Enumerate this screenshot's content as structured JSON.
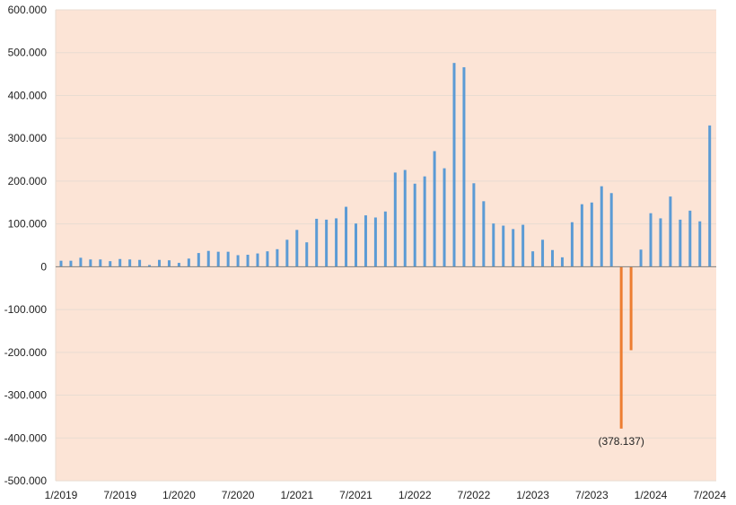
{
  "chart_data": {
    "type": "bar",
    "title": "",
    "xlabel": "",
    "ylabel": "",
    "ylim": [
      -500000,
      600000
    ],
    "y_ticks": [
      {
        "value": 600000,
        "label": "600.000"
      },
      {
        "value": 500000,
        "label": "500.000"
      },
      {
        "value": 400000,
        "label": "400.000"
      },
      {
        "value": 300000,
        "label": "300.000"
      },
      {
        "value": 200000,
        "label": "200.000"
      },
      {
        "value": 100000,
        "label": "100.000"
      },
      {
        "value": 0,
        "label": "0"
      },
      {
        "value": -100000,
        "label": "-100.000"
      },
      {
        "value": -200000,
        "label": "-200.000"
      },
      {
        "value": -300000,
        "label": "-300.000"
      },
      {
        "value": -400000,
        "label": "-400.000"
      },
      {
        "value": -500000,
        "label": "-500.000"
      }
    ],
    "x_ticks": [
      {
        "index": 0,
        "label": "1/2019"
      },
      {
        "index": 6,
        "label": "7/2019"
      },
      {
        "index": 12,
        "label": "1/2020"
      },
      {
        "index": 18,
        "label": "7/2020"
      },
      {
        "index": 24,
        "label": "1/2021"
      },
      {
        "index": 30,
        "label": "7/2021"
      },
      {
        "index": 36,
        "label": "1/2022"
      },
      {
        "index": 42,
        "label": "7/2022"
      },
      {
        "index": 48,
        "label": "1/2023"
      },
      {
        "index": 54,
        "label": "7/2023"
      },
      {
        "index": 60,
        "label": "1/2024"
      },
      {
        "index": 66,
        "label": "7/2024"
      }
    ],
    "grid": true,
    "legend": "none",
    "colors": {
      "plot_background": "#fce4d6",
      "gridline": "#e8dcd2",
      "positive": "#5b9bd5",
      "negative": "#ed7d31",
      "axis": "#7f7f7f"
    },
    "series": [
      {
        "values": [
          14000,
          14000,
          21000,
          17000,
          17000,
          13000,
          18000,
          17000,
          16000,
          4000,
          16000,
          15000,
          9000,
          19000,
          32000,
          37000,
          35000,
          35000,
          27000,
          28000,
          31000,
          36000,
          41000,
          63000,
          86000,
          57000,
          112000,
          110000,
          113000,
          140000,
          101000,
          120000,
          115000,
          129000,
          220000,
          226000,
          194000,
          211000,
          270000,
          230000,
          476000,
          466000,
          195000,
          153000,
          101000,
          96000,
          88000,
          98000,
          36000,
          63000,
          39000,
          22000,
          104000,
          146000,
          150000,
          188000,
          172000,
          -378137,
          -195000,
          40000,
          125000,
          113000,
          164000,
          110000,
          131000,
          106000,
          330000
        ]
      }
    ],
    "annotations": [
      {
        "index": 57,
        "label": "(378.137)"
      }
    ]
  }
}
